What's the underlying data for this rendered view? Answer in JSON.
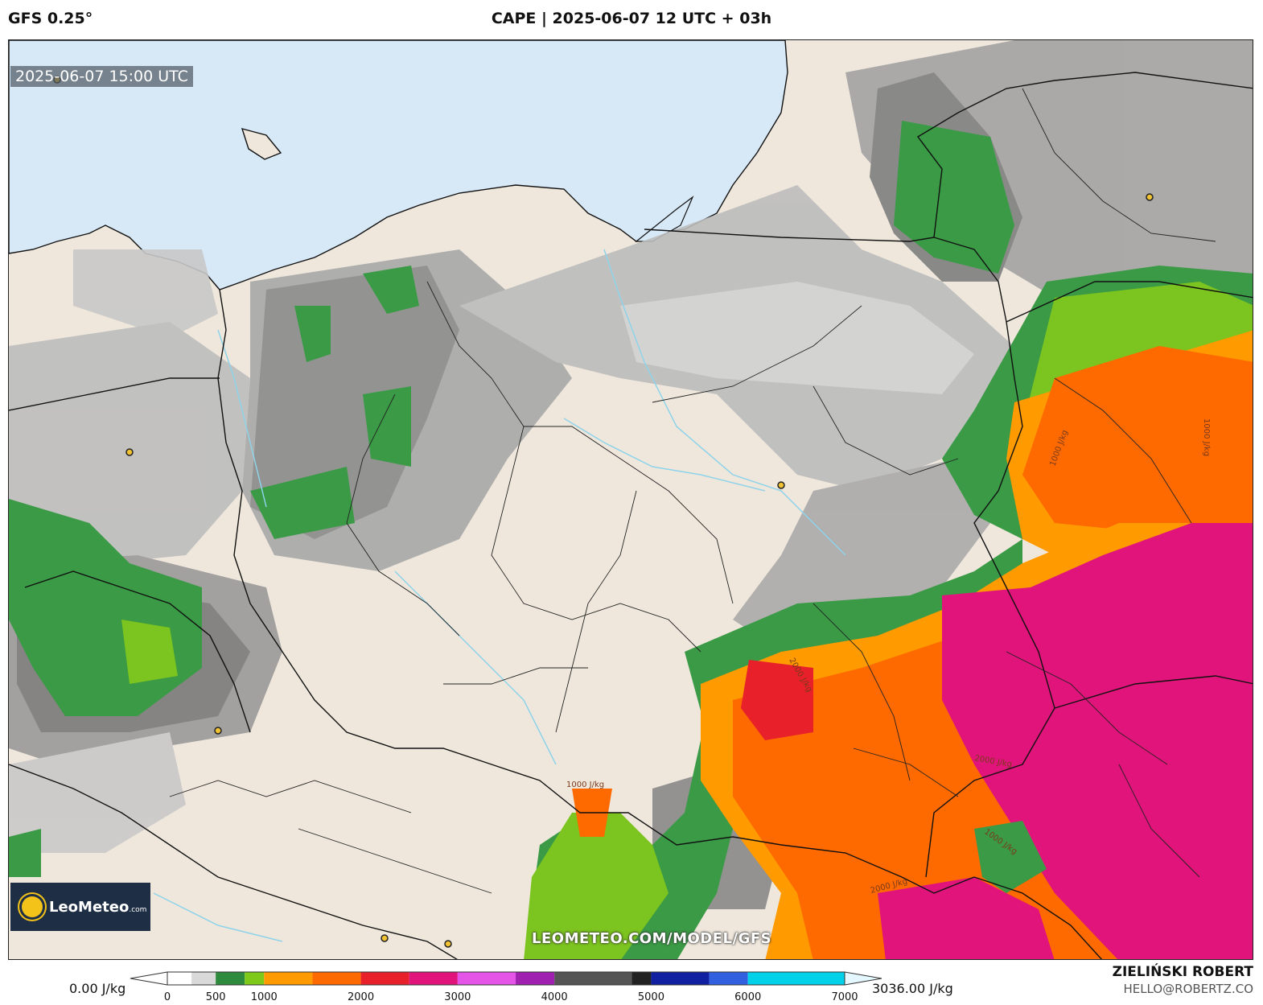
{
  "header": {
    "model": "GFS 0.25°",
    "title": "CAPE | 2025-06-07 12 UTC + 03h"
  },
  "map": {
    "valid_time": "2025-06-07 15:00 UTC",
    "watermark": "LEOMETEO.COM/MODEL/GFS",
    "logo": {
      "name": "LeoMeteo",
      "suffix": ".com"
    },
    "contour_labels": [
      "1000 J/kg",
      "2000 J/kg",
      "1000 J/kg",
      "2000 J/kg",
      "1000 J/kg",
      "2000 J/kg",
      "1000 J/kg"
    ],
    "colors": {
      "sea": "#d7e8f7",
      "land": "#efe7dc",
      "border": "#111111",
      "river": "#8fd3ea"
    }
  },
  "colorbar": {
    "min_label": "0.00 J/kg",
    "max_label": "3036.00 J/kg",
    "unit": "J/kg",
    "ticks": [
      "0",
      "500",
      "1000",
      "2000",
      "3000",
      "4000",
      "5000",
      "6000",
      "7000"
    ],
    "tick_values": [
      0,
      500,
      1000,
      2000,
      3000,
      4000,
      5000,
      6000,
      7000
    ],
    "stops": [
      {
        "value": 0,
        "color": "#ffffff"
      },
      {
        "value": 250,
        "color": "#d9d9d9"
      },
      {
        "value": 500,
        "color": "#2e8b3e"
      },
      {
        "value": 800,
        "color": "#7fc91a"
      },
      {
        "value": 1000,
        "color": "#ff9a00"
      },
      {
        "value": 1500,
        "color": "#ff6a00"
      },
      {
        "value": 2000,
        "color": "#e8202a"
      },
      {
        "value": 2500,
        "color": "#e0147a"
      },
      {
        "value": 3000,
        "color": "#e454e6"
      },
      {
        "value": 3600,
        "color": "#a020b0"
      },
      {
        "value": 4000,
        "color": "#555555"
      },
      {
        "value": 4800,
        "color": "#222222"
      },
      {
        "value": 5000,
        "color": "#1020a0"
      },
      {
        "value": 5600,
        "color": "#3060e0"
      },
      {
        "value": 6000,
        "color": "#00d0e8"
      },
      {
        "value": 7000,
        "color": "#e6f8ff"
      }
    ]
  },
  "credits": {
    "author": "ZIELIŃSKI ROBERT",
    "email": "HELLO@ROBERTZ.CO"
  }
}
